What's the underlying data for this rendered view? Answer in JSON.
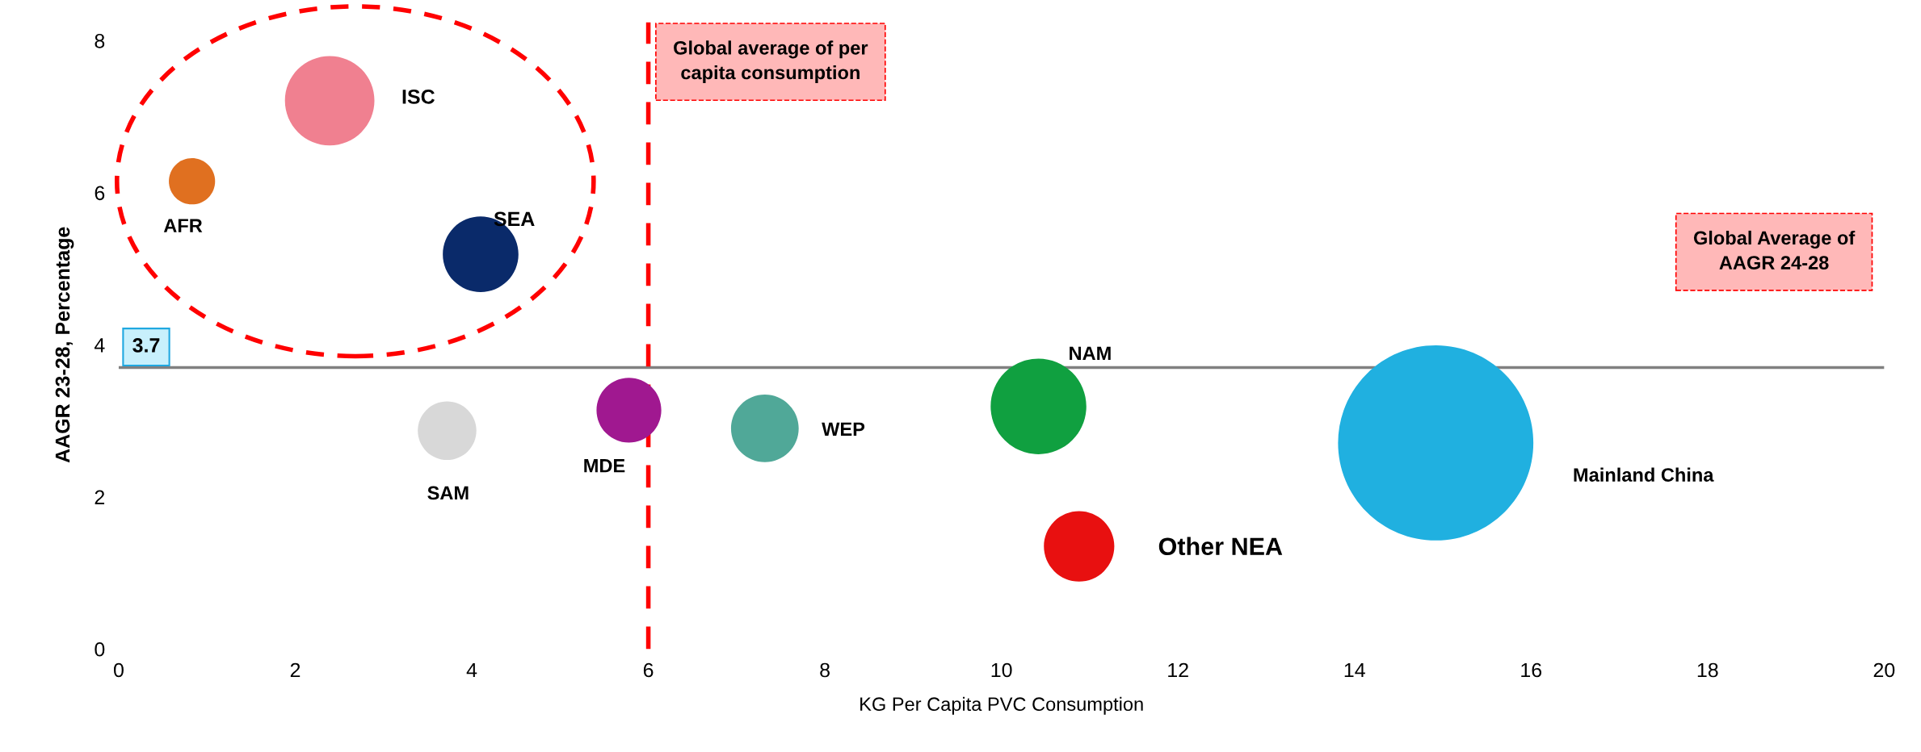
{
  "chart_data": {
    "type": "bubble",
    "xlabel": "KG Per Capita PVC Consumption",
    "ylabel": "AAGR 23-28, Percentage",
    "xlim": [
      0,
      20
    ],
    "xticks": [
      0,
      2,
      4,
      6,
      8,
      10,
      12,
      14,
      16,
      18,
      20
    ],
    "ylim": [
      0,
      8
    ],
    "yticks": [
      0,
      2,
      4,
      6,
      8
    ],
    "grid": false,
    "legend": false,
    "series": [
      {
        "name": "AFR",
        "color": "#e07020",
        "x": [
          0.83
        ],
        "values": [
          6.15
        ],
        "sizes": [
          0.056
        ]
      },
      {
        "name": "ISC",
        "color": "#f08090",
        "x": [
          2.39
        ],
        "values": [
          7.21
        ],
        "sizes": [
          0.21
        ]
      },
      {
        "name": "SEA",
        "color": "#0a2a6a",
        "x": [
          4.1
        ],
        "values": [
          5.19
        ],
        "sizes": [
          0.15
        ]
      },
      {
        "name": "SAM",
        "color": "#d8d8d8",
        "x": [
          3.72
        ],
        "values": [
          2.87
        ],
        "sizes": [
          0.09
        ]
      },
      {
        "name": "MDE",
        "color": "#a01890",
        "x": [
          5.78
        ],
        "values": [
          3.14
        ],
        "sizes": [
          0.11
        ]
      },
      {
        "name": "WEP",
        "color": "#50a898",
        "x": [
          7.32
        ],
        "values": [
          2.9
        ],
        "sizes": [
          0.12
        ]
      },
      {
        "name": "NAM",
        "color": "#10a040",
        "x": [
          10.42
        ],
        "values": [
          3.19
        ],
        "sizes": [
          0.24
        ]
      },
      {
        "name": "Other NEA",
        "color": "#e81010",
        "x": [
          10.88
        ],
        "values": [
          1.35
        ],
        "sizes": [
          0.13
        ]
      },
      {
        "name": "Mainland China",
        "color": "#20b0e0",
        "x": [
          14.92
        ],
        "values": [
          2.71
        ],
        "sizes": [
          1
        ]
      }
    ],
    "ref_lines": [
      {
        "axis": "y",
        "value": 3.7,
        "label": "3.7",
        "color": "#808080",
        "line_style": "solid"
      },
      {
        "axis": "x",
        "value": 6,
        "label": "Global average of per capita consumption",
        "color": "#ff0000",
        "line_style": "dashed"
      }
    ],
    "annotations": [
      "Global Average of AAGR 24-28"
    ]
  }
}
